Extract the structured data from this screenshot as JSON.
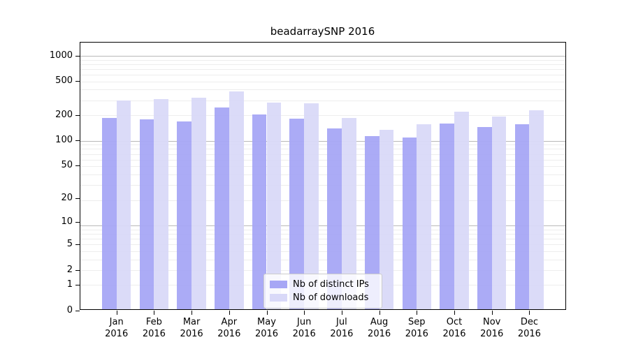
{
  "chart_data": {
    "type": "bar",
    "title": "beadarraySNP 2016",
    "xlabel": "",
    "ylabel": "",
    "year_label": "2016",
    "categories": [
      "Jan",
      "Feb",
      "Mar",
      "Apr",
      "May",
      "Jun",
      "Jul",
      "Aug",
      "Sep",
      "Oct",
      "Nov",
      "Dec"
    ],
    "series": [
      {
        "name": "Nb of distinct IPs",
        "color": "#a7a7f5",
        "values": [
          184,
          178,
          167,
          247,
          201,
          180,
          139,
          112,
          109,
          157,
          144,
          156
        ]
      },
      {
        "name": "Nb of downloads",
        "color": "#d9d9f8",
        "values": [
          295,
          306,
          318,
          382,
          279,
          277,
          183,
          133,
          155,
          220,
          192,
          227
        ]
      }
    ],
    "y_ticks": [
      0,
      1,
      2,
      5,
      10,
      20,
      50,
      100,
      200,
      500,
      1000
    ],
    "y_scale": "log10(value+1)",
    "ylim": [
      0,
      1400
    ],
    "grid": "horizontal, log minor + major",
    "legend_position": "bottom-center-inside",
    "grid_minor_color": "#ededed",
    "grid_major_color": "#b8b8b8",
    "axis_color": "#000000",
    "background_color": "#ffffff"
  }
}
